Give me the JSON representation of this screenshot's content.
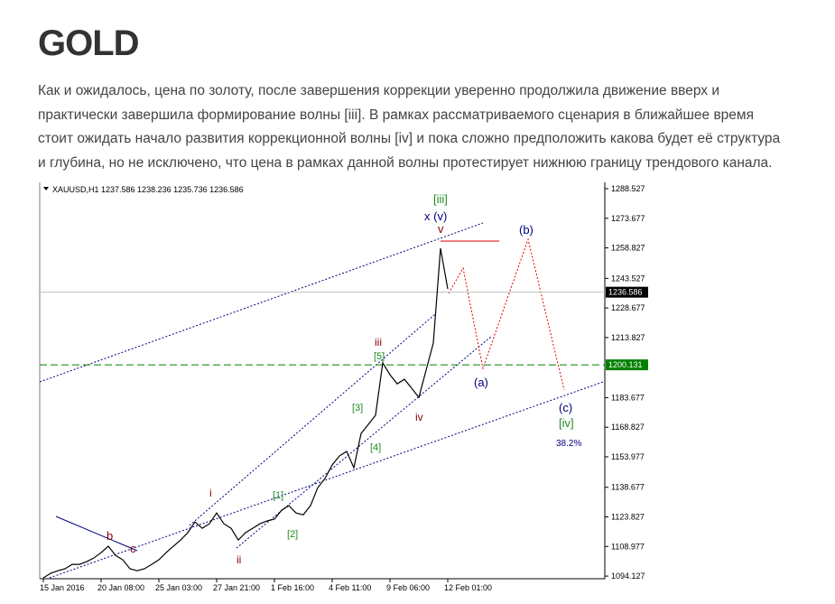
{
  "header": {
    "title": "GOLD"
  },
  "article": {
    "lines": [
      "Как и ожидалось, цена по золоту, после завершения коррекции уверенно продолжила движение вверх и",
      "практически завершила формирование волны [iii]. В рамках рассматриваемого сценария в ближайшее время",
      "стоит ожидать начало развития коррекционной волны [iv] и пока сложно предположить какова будет её структура",
      "и глубина, но не исключено, что цена в рамках данной волны протестирует нижнюю границу трендового канала."
    ]
  },
  "chart_data": {
    "type": "line",
    "title": "XAUUSD,H1  1237.586 1238.236 1235.736 1236.586",
    "categories": [
      "15 Jan 2016",
      null,
      null,
      null,
      null,
      null,
      null,
      null,
      "20 Jan 08:00",
      null,
      null,
      null,
      null,
      null,
      null,
      null,
      "25 Jan 03:00",
      null,
      null,
      null,
      null,
      null,
      null,
      null,
      "27 Jan 21:00",
      null,
      null,
      null,
      null,
      null,
      null,
      null,
      "1 Feb 16:00",
      null,
      null,
      null,
      null,
      null,
      null,
      null,
      "4 Feb 11:00",
      null,
      null,
      null,
      null,
      null,
      null,
      null,
      "9 Feb 06:00",
      null,
      null,
      null,
      null,
      null,
      null,
      null,
      "12 Feb 01:00"
    ],
    "values": [
      1093.2,
      1095.5,
      1096.8,
      1097.8,
      1100.0,
      1100.0,
      1101.4,
      1103.2,
      1105.9,
      1109.1,
      1104.5,
      1102.3,
      1097.8,
      1096.8,
      1097.8,
      1100.0,
      1102.3,
      1105.9,
      1109.1,
      1112.2,
      1115.9,
      1121.3,
      1118.1,
      1120.4,
      1125.8,
      1120.4,
      1118.1,
      1112.2,
      1115.9,
      1118.1,
      1120.4,
      1121.8,
      1122.7,
      1127.2,
      1129.5,
      1125.8,
      1124.9,
      1129.5,
      1138.5,
      1143.1,
      1149.9,
      1154.4,
      1156.7,
      1148.5,
      1165.7,
      1170.2,
      1174.8,
      1201.1,
      1195.2,
      1190.6,
      1192.9,
      1188.4,
      1183.8,
      1197.4,
      1211.0,
      1258.6,
      1238.2
    ],
    "color": "#000000",
    "ylim": [
      1092.8,
      1291.7
    ],
    "yticks": [
      1094.127,
      1108.977,
      1123.827,
      1138.677,
      1153.977,
      1168.827,
      1183.677,
      1213.827,
      1228.677,
      1243.527,
      1258.827,
      1273.677,
      1288.527
    ],
    "price_line": 1236.586,
    "level_line": 1200.131,
    "level_color": "#008000",
    "annotations": [
      "[iii]",
      "x (v)",
      "v",
      "(b)",
      "iii",
      "[5]",
      "(a)",
      "[3]",
      "iv",
      "(c)",
      "[iv]",
      "38.2%",
      "[4]",
      "i",
      "[1]",
      "b",
      "c",
      "[2]",
      "ii"
    ]
  }
}
